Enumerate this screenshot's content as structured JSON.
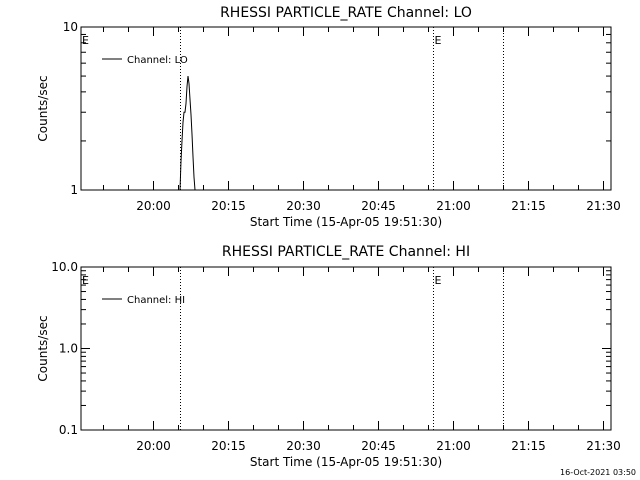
{
  "chart_data": [
    {
      "type": "line",
      "title": "RHESSI PARTICLE_RATE Channel: LO",
      "xlabel": "Start Time (15-Apr-05 19:51:30)",
      "ylabel": "Counts/sec",
      "y_scale": "log",
      "ylim": [
        1,
        10
      ],
      "y_ticks": [
        1,
        10
      ],
      "y_tick_labels": [
        "1",
        "10"
      ],
      "xlim_minutes": [
        -6,
        100
      ],
      "x_ticks_minutes": [
        8.5,
        23.5,
        38.5,
        53.5,
        68.5,
        83.5,
        98.5
      ],
      "x_tick_labels": [
        "20:00",
        "20:15",
        "20:30",
        "20:45",
        "21:00",
        "21:15",
        "21:30"
      ],
      "legend": {
        "label": "Channel: LO",
        "placement": "top-left"
      },
      "event_lines_minutes": [
        13.9,
        64.5,
        78.5
      ],
      "event_markers": [
        {
          "x_minutes": -6,
          "label": "E"
        },
        {
          "x_minutes": 64.5,
          "label": "E"
        }
      ],
      "series": [
        {
          "x_minutes": [
            13.8,
            14.0,
            14.2,
            14.4,
            14.6,
            14.8,
            15.0,
            15.2,
            15.4,
            15.6,
            15.8,
            16.0,
            16.2,
            16.4,
            16.6,
            16.8,
            17.0
          ],
          "values": [
            1.0,
            1.5,
            2.0,
            2.6,
            3.0,
            3.0,
            3.4,
            4.3,
            5.0,
            4.5,
            3.6,
            2.9,
            2.2,
            1.6,
            1.2,
            1.0,
            1.0
          ]
        }
      ]
    },
    {
      "type": "line",
      "title": "RHESSI PARTICLE_RATE Channel: HI",
      "xlabel": "Start Time (15-Apr-05 19:51:30)",
      "ylabel": "Counts/sec",
      "y_scale": "log",
      "ylim": [
        0.1,
        10
      ],
      "y_ticks": [
        0.1,
        1,
        10
      ],
      "y_tick_labels": [
        "0.1",
        "1.0",
        "10.0"
      ],
      "xlim_minutes": [
        -6,
        100
      ],
      "x_ticks_minutes": [
        8.5,
        23.5,
        38.5,
        53.5,
        68.5,
        83.5,
        98.5
      ],
      "x_tick_labels": [
        "20:00",
        "20:15",
        "20:30",
        "20:45",
        "21:00",
        "21:15",
        "21:30"
      ],
      "legend": {
        "label": "Channel: HI",
        "placement": "top-left"
      },
      "event_lines_minutes": [
        13.9,
        64.5,
        78.5
      ],
      "event_markers": [
        {
          "x_minutes": -6,
          "label": "E"
        },
        {
          "x_minutes": 64.5,
          "label": "E"
        }
      ],
      "series": []
    }
  ],
  "footer": {
    "timestamp": "16-Oct-2021 03:50"
  }
}
